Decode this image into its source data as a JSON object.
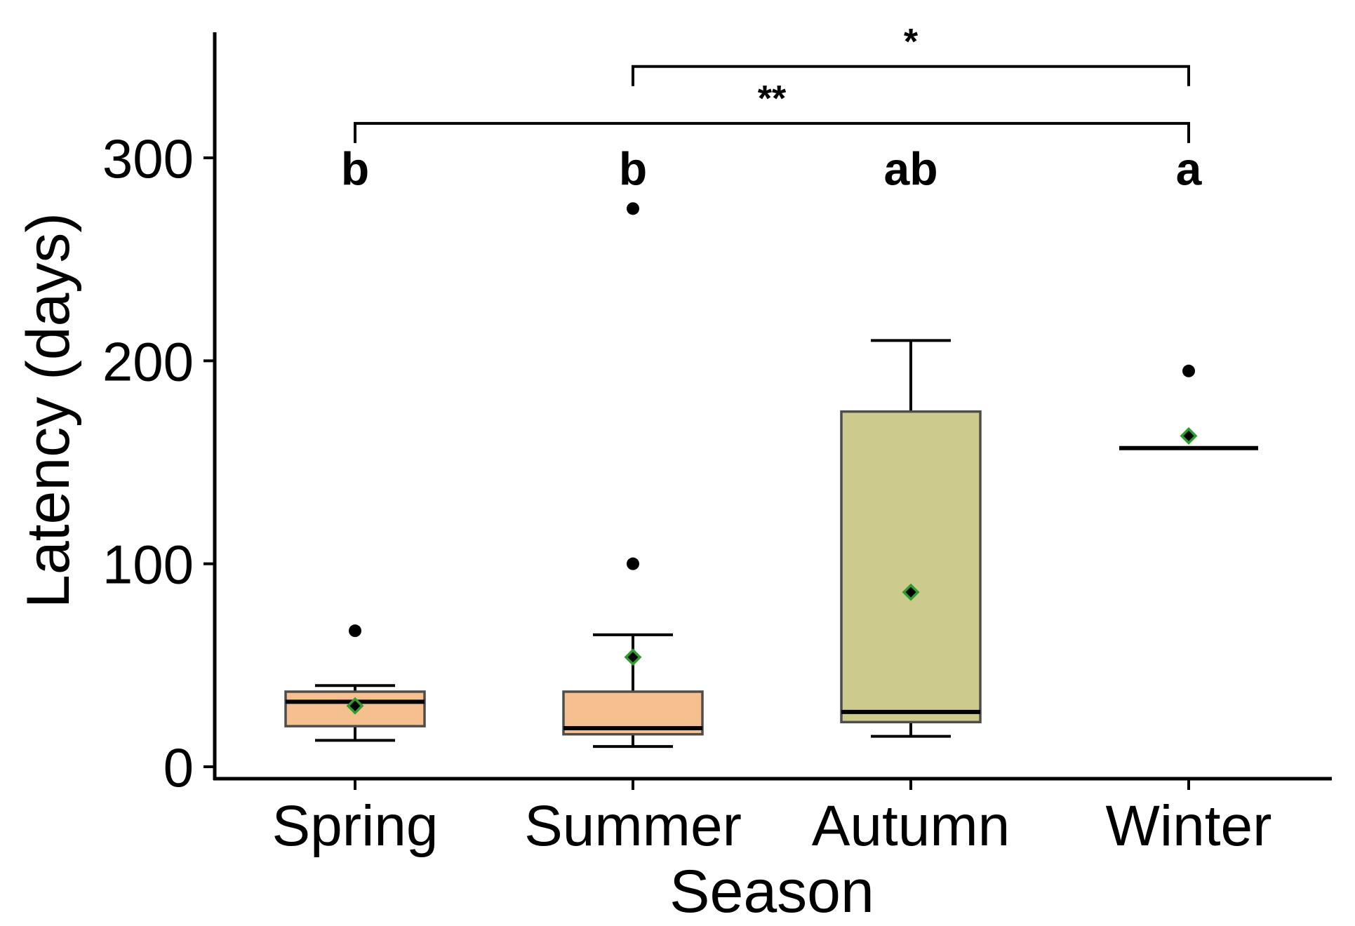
{
  "chart_data": {
    "type": "box",
    "title": "",
    "xlabel": "Season",
    "ylabel": "Latency (days)",
    "ylim": [
      -6,
      360
    ],
    "yticks": [
      0,
      100,
      200,
      300
    ],
    "categories": [
      "Spring",
      "Summer",
      "Autumn",
      "Winter"
    ],
    "boxes": [
      {
        "category": "Spring",
        "q1": 20,
        "median": 32,
        "q3": 37,
        "whisker_low": 13,
        "whisker_high": 40,
        "mean": 30,
        "outliers": [
          67
        ],
        "color": "#f5bf8f",
        "letter": "b"
      },
      {
        "category": "Summer",
        "q1": 16,
        "median": 19,
        "q3": 37,
        "whisker_low": 10,
        "whisker_high": 65,
        "mean": 54,
        "outliers": [
          100,
          275
        ],
        "color": "#f5bf8f",
        "letter": "b"
      },
      {
        "category": "Autumn",
        "q1": 22,
        "median": 27,
        "q3": 175,
        "whisker_low": 15,
        "whisker_high": 210,
        "mean": 86,
        "outliers": [],
        "color": "#cccb8d",
        "letter": "ab"
      },
      {
        "category": "Winter",
        "q1": 157,
        "median": 157,
        "q3": 157,
        "whisker_low": null,
        "whisker_high": null,
        "mean": 163,
        "outliers": [
          195
        ],
        "color": "#cccb8d",
        "letter": "a"
      }
    ],
    "significance": [
      {
        "from": "Summer",
        "to": "Winter",
        "y": 345,
        "label": "*"
      },
      {
        "from": "Spring",
        "to": "Winter",
        "y": 317,
        "label": "**"
      }
    ],
    "letter_y": 295,
    "colors": {
      "axis": "#000000",
      "mean_marker": "#2ca02c",
      "box_edge": "#4d4d4d"
    }
  }
}
